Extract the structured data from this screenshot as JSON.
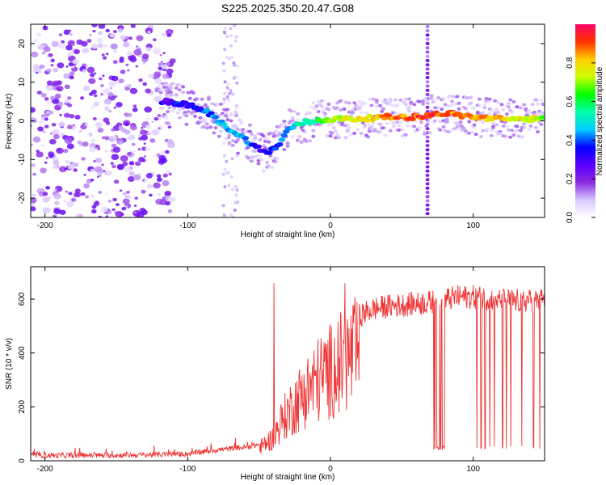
{
  "title": "S225.2025.350.20.47.G08",
  "chart_data": [
    {
      "type": "heatmap",
      "name": "spectrogram",
      "xlabel": "Height of straight line (km)",
      "ylabel": "Frequency (Hz)",
      "xlim": [
        -210,
        150
      ],
      "ylim": [
        -25,
        25
      ],
      "xticks": [
        "-200",
        "-100",
        "0",
        "100"
      ],
      "xtick_values": [
        -200,
        -100,
        0,
        100
      ],
      "yticks": [
        "-20",
        "-10",
        "0",
        "10",
        "20"
      ],
      "ytick_values": [
        -20,
        -10,
        0,
        10,
        20
      ],
      "colorbar": {
        "label": "Normalized spectral amplitude",
        "range": [
          0,
          1
        ],
        "ticks": [
          "0.0",
          "0.2",
          "0.4",
          "0.6",
          "0.8"
        ],
        "tick_values": [
          0.0,
          0.2,
          0.4,
          0.6,
          0.8
        ],
        "colors": [
          "#ffffff",
          "#d9c8ff",
          "#8a2be2",
          "#5a00ff",
          "#0000ff",
          "#00ccff",
          "#00ffaa",
          "#00ff00",
          "#ccff00",
          "#ffcc00",
          "#ff3300",
          "#ff0066"
        ]
      },
      "ridge": {
        "x": [
          -115,
          -105,
          -95,
          -85,
          -75,
          -65,
          -55,
          -45,
          -40,
          -35,
          -30,
          -25,
          -20,
          -10,
          0,
          20,
          40,
          60,
          70,
          80,
          100,
          120,
          140,
          150
        ],
        "y": [
          5,
          4.5,
          3.5,
          2,
          -1,
          -3.5,
          -6,
          -8.5,
          -7,
          -6,
          -2,
          -1.5,
          -0.5,
          0,
          0.5,
          0.5,
          1,
          1,
          1.5,
          2,
          1,
          0.5,
          0.5,
          1
        ],
        "amplitude": [
          0.3,
          0.35,
          0.35,
          0.4,
          0.45,
          0.45,
          0.4,
          0.3,
          0.35,
          0.4,
          0.45,
          0.5,
          0.55,
          0.6,
          0.7,
          0.8,
          0.85,
          0.9,
          0.9,
          0.9,
          0.85,
          0.8,
          0.75,
          0.7
        ]
      }
    },
    {
      "type": "line",
      "name": "snr",
      "xlabel": "Height of straight line (km)",
      "ylabel": "SNR (10 * v/v)",
      "xlim": [
        -210,
        150
      ],
      "ylim": [
        0,
        720
      ],
      "xticks": [
        "-200",
        "-100",
        "0",
        "100"
      ],
      "xtick_values": [
        -200,
        -100,
        0,
        100
      ],
      "yticks": [
        "0",
        "200",
        "400",
        "600"
      ],
      "ytick_values": [
        0,
        200,
        400,
        600
      ],
      "color": "#ee3333",
      "envelope": {
        "x": [
          -210,
          -150,
          -100,
          -80,
          -60,
          -50,
          -40,
          -35,
          -30,
          -25,
          -20,
          -10,
          0,
          10,
          20,
          30,
          40,
          50,
          60,
          70,
          80,
          90,
          100,
          110,
          120,
          130,
          140,
          150
        ],
        "y": [
          20,
          20,
          25,
          40,
          50,
          60,
          110,
          180,
          230,
          270,
          310,
          380,
          430,
          480,
          520,
          545,
          555,
          560,
          565,
          570,
          580,
          590,
          590,
          585,
          580,
          575,
          575,
          580
        ]
      },
      "dropouts_x": [
        [
          72,
          80
        ],
        [
          102,
          102.8
        ],
        [
          105,
          105.8
        ],
        [
          108,
          108.8
        ],
        [
          111,
          111.8
        ],
        [
          114,
          114.8
        ],
        [
          117,
          117.8
        ],
        [
          120,
          120.8
        ],
        [
          123,
          123.8
        ],
        [
          126,
          126.8
        ],
        [
          130,
          130.8
        ],
        [
          134,
          134.8
        ],
        [
          138,
          138.8
        ],
        [
          142,
          142.8
        ],
        [
          146,
          146.8
        ]
      ],
      "dropout_level": 40
    }
  ]
}
